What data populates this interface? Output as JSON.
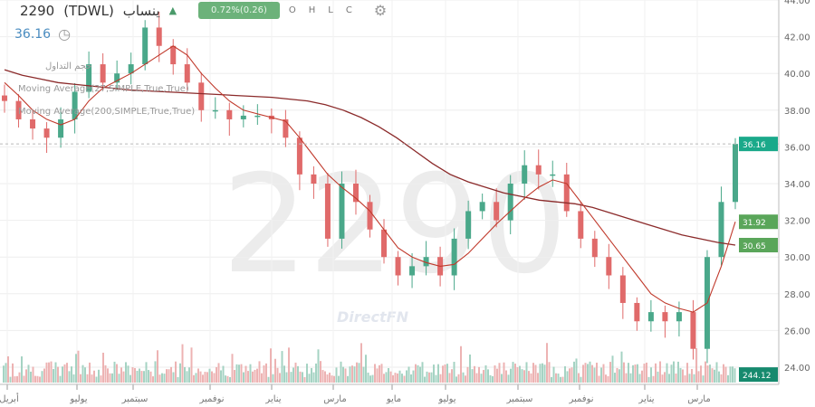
{
  "header": {
    "symbol": "2290",
    "exchange": "(TDWL)",
    "name": "ينساب",
    "direction_icon": "triangle-up-icon",
    "change": "0.72%(0.26)",
    "ohlc": [
      "O",
      "H",
      "L",
      "C"
    ],
    "settings_icon": "gear-icon",
    "last_price": "36.16",
    "clock_icon": "clock-icon"
  },
  "legend": {
    "volume": "حجم التداول",
    "ma_short": "Moving Average(27,SIMPLE,True,True)",
    "ma_long": "Moving Average(200,SIMPLE,True,True)"
  },
  "watermark": {
    "symbol": "2290",
    "brand": "DirectFN"
  },
  "chart_data": {
    "type": "candlestick",
    "ylim": [
      24,
      44
    ],
    "y_ticks": [
      "24.00",
      "26.00",
      "28.00",
      "30.00",
      "32.00",
      "34.00",
      "36.00",
      "38.00",
      "40.00",
      "42.00",
      "44.00"
    ],
    "x_ticks": [
      "أبريل",
      "يوليو",
      "سبتمبر",
      "نوفمبر",
      "يناير",
      "مارس",
      "مايو",
      "يوليو",
      "سبتمبر",
      "نوفمبر",
      "يناير",
      "مارس"
    ],
    "close": [
      38.5,
      37.5,
      37,
      36.5,
      37.5,
      39,
      40.5,
      39.5,
      40,
      40.5,
      42.5,
      41.5,
      40.5,
      39.5,
      38,
      38,
      37.5,
      37.7,
      37.7,
      37.5,
      36.5,
      34.5,
      34,
      31,
      34,
      33,
      31.5,
      30,
      29,
      29.5,
      30,
      29,
      31,
      32.5,
      33,
      32,
      34,
      35,
      34.5,
      34.5,
      32.5,
      31,
      30,
      29,
      27.5,
      26.5,
      27,
      26.5,
      27,
      25,
      30,
      33,
      36.16
    ],
    "ma_short": [
      39.5,
      38.8,
      38,
      37.5,
      37.2,
      37.5,
      38.5,
      39.2,
      39.6,
      40,
      40.5,
      41,
      41.5,
      41,
      40,
      39.2,
      38.5,
      38,
      37.8,
      37.6,
      37.4,
      36.5,
      35.5,
      34.5,
      33.8,
      33.2,
      32.5,
      31.5,
      30.5,
      30,
      29.7,
      29.5,
      29.6,
      30.2,
      31,
      31.8,
      32.5,
      33.2,
      33.8,
      34.2,
      34,
      33,
      32,
      31,
      30,
      29,
      28,
      27.5,
      27.2,
      27,
      27.5,
      29.5,
      31.92
    ],
    "ma_long": [
      40.2,
      39.9,
      39.7,
      39.5,
      39.4,
      39.3,
      39.2,
      39.1,
      39.05,
      39,
      38.95,
      38.9,
      38.85,
      38.8,
      38.75,
      38.7,
      38.6,
      38.5,
      38.3,
      38,
      37.6,
      37.1,
      36.5,
      35.8,
      35.1,
      34.5,
      34.1,
      33.8,
      33.5,
      33.3,
      33.1,
      33,
      32.9,
      32.7,
      32.4,
      32.1,
      31.8,
      31.5,
      31.2,
      31,
      30.8,
      30.65
    ],
    "last_price_tag": "36.16",
    "ma_short_tag": "31.92",
    "ma_long_tag": "30.65",
    "volume_tag": "244.12",
    "colors": {
      "up": "#4aa88a",
      "down": "#e06a6a",
      "ma_short": "#c0392b",
      "ma_long": "#8b2a2a",
      "ma_green": "#8cc08c",
      "tag_green": "#5aa65a",
      "tag_teal": "#1aa98a"
    }
  }
}
